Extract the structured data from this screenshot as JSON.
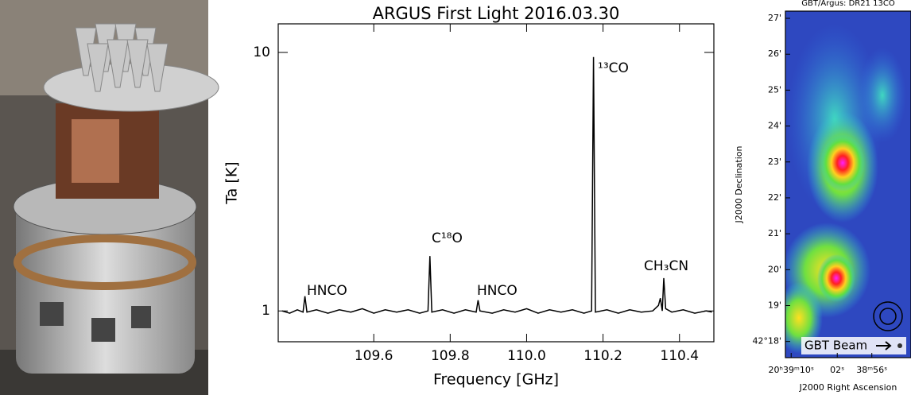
{
  "chart_data": [
    {
      "type": "line",
      "title": "ARGUS First Light 2016.03.30",
      "xlabel": "Frequency [GHz]",
      "ylabel": "Ta [K]",
      "x": [
        109.36,
        109.38,
        109.4,
        109.415,
        109.42,
        109.425,
        109.45,
        109.48,
        109.51,
        109.54,
        109.57,
        109.6,
        109.63,
        109.66,
        109.69,
        109.72,
        109.742,
        109.747,
        109.752,
        109.78,
        109.81,
        109.84,
        109.868,
        109.873,
        109.878,
        109.91,
        109.94,
        109.97,
        110.0,
        110.03,
        110.06,
        110.09,
        110.12,
        110.15,
        110.17,
        110.175,
        110.18,
        110.21,
        110.24,
        110.27,
        110.3,
        110.33,
        110.345,
        110.35,
        110.355,
        110.359,
        110.364,
        110.38,
        110.41,
        110.44,
        110.47,
        110.485
      ],
      "values": [
        1.0,
        0.98,
        1.01,
        0.99,
        1.14,
        0.99,
        1.01,
        0.98,
        1.01,
        0.99,
        1.02,
        0.98,
        1.01,
        0.99,
        1.01,
        0.98,
        1.0,
        1.63,
        0.99,
        1.01,
        0.98,
        1.01,
        0.99,
        1.1,
        1.0,
        0.98,
        1.01,
        0.99,
        1.02,
        0.98,
        1.01,
        0.99,
        1.01,
        0.98,
        1.0,
        9.6,
        0.99,
        1.01,
        0.98,
        1.01,
        0.99,
        1.0,
        1.05,
        1.12,
        1.0,
        1.34,
        1.02,
        0.99,
        1.01,
        0.98,
        1.0,
        0.99
      ],
      "color": "#000000",
      "xlim": [
        109.35,
        110.49
      ],
      "xticks": [
        109.6,
        109.8,
        {
          "value": 110,
          "label": "110.0"
        },
        110.2,
        110.4
      ],
      "ylim": [
        0.76,
        12.9
      ],
      "yticks": [
        1,
        10
      ],
      "log_y": true,
      "annotations": [
        "HNCO",
        "C¹⁸O",
        "HNCO",
        "¹³CO",
        "CH₃CN"
      ]
    },
    {
      "type": "map",
      "title": "GBT/Argus:  DR21 13CO",
      "xlabel": "J2000 Right Ascension",
      "ylabel": "J2000 Declination",
      "xlim": [
        71,
        49.2
      ],
      "xticks": [
        {
          "value": 70,
          "label": "20ʰ39ᵐ10ˢ"
        },
        {
          "value": 62,
          "label": "02ˢ"
        },
        {
          "value": 56,
          "label": "38ᵐ56ˢ"
        }
      ],
      "ylim": [
        17.55,
        27.2
      ],
      "yticks": [
        {
          "value": 18,
          "label": "42°18'"
        },
        {
          "value": 19,
          "label": "19'"
        },
        {
          "value": 20,
          "label": "20'"
        },
        {
          "value": 21,
          "label": "21'"
        },
        {
          "value": 22,
          "label": "22'"
        },
        {
          "value": 23,
          "label": "23'"
        },
        {
          "value": 24,
          "label": "24'"
        },
        {
          "value": 25,
          "label": "25'"
        },
        {
          "value": 26,
          "label": "26'"
        },
        {
          "value": 27,
          "label": "27'"
        }
      ],
      "annotations": [
        "GBT Beam"
      ]
    }
  ]
}
